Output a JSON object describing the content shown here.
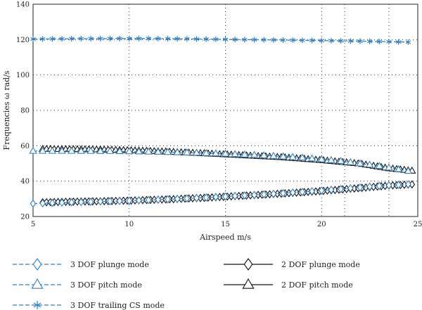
{
  "colors": {
    "three_dof": "#2f80c8",
    "two_dof": "#111111",
    "grid": "#333333"
  },
  "chart_data": {
    "type": "line",
    "xlabel": "Airspeed m/s",
    "ylabel": "Frequencies ω rad/s",
    "xlim": [
      5,
      25
    ],
    "ylim": [
      20,
      140
    ],
    "xticks": [
      5,
      10,
      15,
      20,
      25
    ],
    "yticks": [
      20,
      40,
      60,
      80,
      100,
      120,
      140
    ],
    "x_gridlines": [
      10,
      15,
      20,
      21.2,
      23.5
    ],
    "y_gridlines": [
      20,
      40,
      60,
      80,
      100,
      120,
      140
    ],
    "grid": "dotted",
    "legend_position": "bottom",
    "series": [
      {
        "name": "3 DOF plunge mode",
        "marker": "diamond",
        "line": "dashed",
        "color": "three_dof",
        "x": [
          5,
          7,
          9,
          11,
          13,
          15,
          17,
          19,
          21,
          23,
          24.5
        ],
        "y": [
          27.3,
          28.0,
          28.6,
          29.3,
          30.2,
          31.3,
          32.5,
          33.9,
          35.5,
          37.3,
          38.2
        ]
      },
      {
        "name": "3 DOF pitch mode",
        "marker": "triangle",
        "line": "dashed",
        "color": "three_dof",
        "x": [
          5,
          7,
          9,
          11,
          13,
          15,
          17,
          19,
          21,
          23,
          24.5
        ],
        "y": [
          57.0,
          57.0,
          56.9,
          56.6,
          56.1,
          55.4,
          54.5,
          53.2,
          51.3,
          48.5,
          45.7
        ]
      },
      {
        "name": "3 DOF trailing CS mode",
        "marker": "star",
        "line": "dashed",
        "color": "three_dof",
        "x": [
          5,
          7,
          9,
          11,
          13,
          15,
          17,
          19,
          21,
          23,
          24.5
        ],
        "y": [
          120.3,
          120.5,
          120.6,
          120.6,
          120.4,
          120.1,
          119.9,
          119.6,
          119.3,
          118.9,
          118.6
        ]
      },
      {
        "name": "2 DOF plunge mode",
        "marker": "diamond",
        "line": "solid",
        "color": "two_dof",
        "x": [
          5.5,
          7,
          8.5,
          10,
          12,
          14,
          16,
          18,
          20,
          22,
          23.5,
          24.8
        ],
        "y": [
          28.0,
          28.4,
          28.6,
          29.0,
          29.7,
          30.6,
          31.8,
          33.0,
          34.4,
          36.1,
          37.5,
          38.2
        ]
      },
      {
        "name": "2 DOF pitch mode",
        "marker": "triangle",
        "line": "solid",
        "color": "two_dof",
        "x": [
          5.5,
          7,
          8.5,
          10,
          12,
          14,
          16,
          18,
          20,
          22,
          23.5,
          24.8
        ],
        "y": [
          58.1,
          58.0,
          57.8,
          57.4,
          56.6,
          55.6,
          54.5,
          53.4,
          51.8,
          49.8,
          47.2,
          45.7
        ]
      }
    ]
  }
}
